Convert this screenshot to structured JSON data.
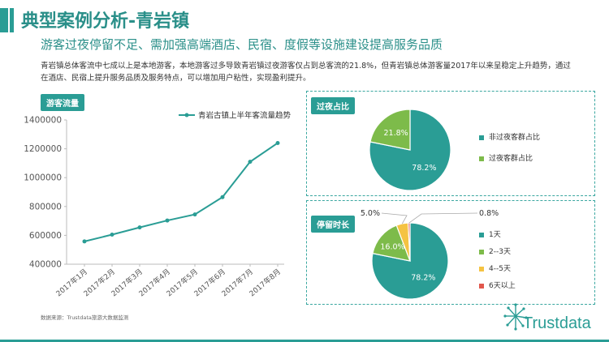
{
  "header": {
    "title": "典型案例分析-青岩镇",
    "subtitle": "游客过夜停留不足、需加强高端酒店、民宿、度假等设施建设提高服务品质",
    "description": "青岩镇总体客流中七成以上是本地游客，本地游客过多导致青岩镇过夜游客仅占到总客流的21.8%，但青岩镇总体游客量2017年以来呈稳定上升趋势，通过在酒店、民宿上提升服务品质及服务特点，可以增加用户粘性，实现盈利提升。"
  },
  "panels": {
    "flow_tag": "游客流量",
    "overnight_tag": "过夜占比",
    "stay_tag": "停留时长"
  },
  "source": "数据来源：Trustdata旅游大数据监测",
  "logo": "Trustdata",
  "colors": {
    "teal": "#2a9d95",
    "green": "#7dbb4a",
    "yellow": "#f5c342",
    "red": "#e1574c"
  },
  "chart_data": [
    {
      "type": "line",
      "categories": [
        "2017年1月",
        "2017年2月",
        "2017年3月",
        "2017年4月",
        "2017年5月",
        "2017年6月",
        "2017年7月",
        "2017年8月"
      ],
      "series": [
        {
          "name": "青岩古镇上半年客流量趋势",
          "values": [
            558000,
            605000,
            655000,
            703000,
            745000,
            865000,
            1110000,
            1240000
          ]
        }
      ],
      "ylim": [
        400000,
        1400000
      ],
      "yticks": [
        "400000",
        "600000",
        "800000",
        "1000000",
        "1200000",
        "1400000"
      ],
      "grid": false,
      "legend": "top"
    },
    {
      "type": "pie",
      "labels": [
        "非过夜客群占比",
        "过夜客群占比"
      ],
      "values": [
        78.2,
        21.8
      ],
      "value_labels": [
        "78.2%",
        "21.8%"
      ],
      "colors": [
        "#2a9d95",
        "#7dbb4a"
      ],
      "legend": "right"
    },
    {
      "type": "pie",
      "labels": [
        "1天",
        "2--3天",
        "4--5天",
        "6天以上"
      ],
      "values": [
        78.2,
        16.0,
        5.0,
        0.8
      ],
      "value_labels": [
        "78.2%",
        "16.0%",
        "5.0%",
        "0.8%"
      ],
      "colors": [
        "#2a9d95",
        "#7dbb4a",
        "#f5c342",
        "#e1574c"
      ],
      "legend": "right"
    }
  ]
}
